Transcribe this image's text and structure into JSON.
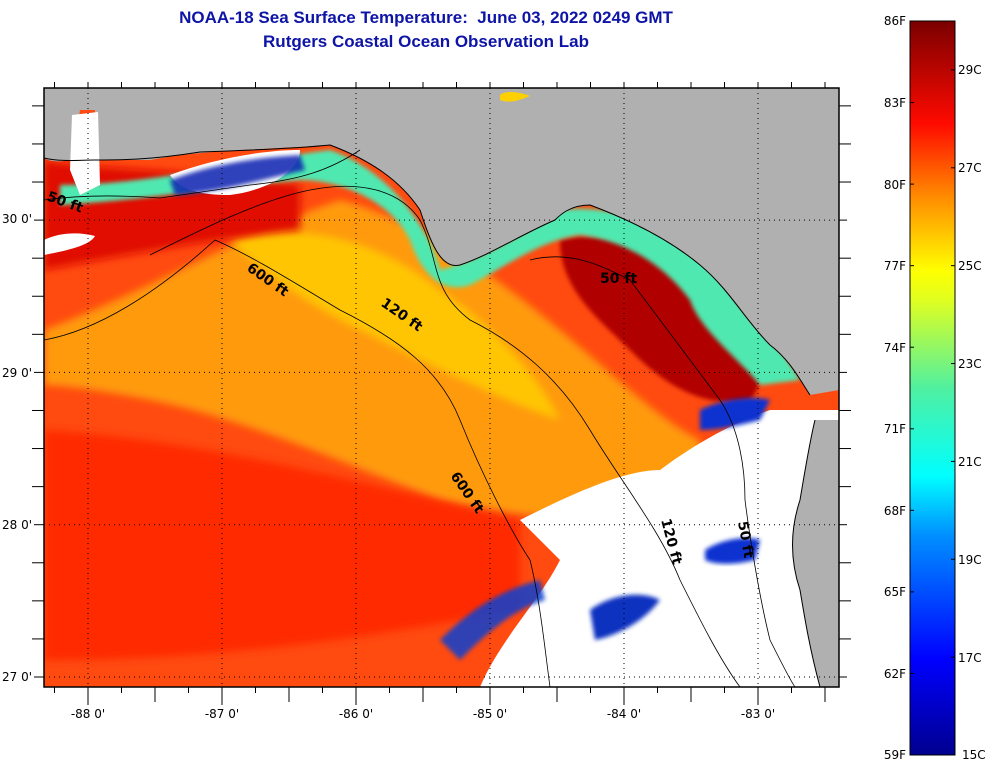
{
  "header": {
    "title": "NOAA-18 Sea Surface Temperature:  June 03, 2022 0249 GMT",
    "subtitle": "Rutgers Coastal Ocean Observation Lab"
  },
  "map": {
    "lat_labels": [
      "30 0'",
      "29 0'",
      "28 0'",
      "27 0'"
    ],
    "lon_labels": [
      "-88 0'",
      "-87 0'",
      "-86 0'",
      "-85 0'",
      "-84 0'",
      "-83 0'"
    ],
    "contour_labels": [
      "50 ft",
      "600 ft",
      "120 ft",
      "50 ft",
      "600 ft",
      "120 ft",
      "50 ft"
    ],
    "colors": {
      "land": "#b0b0b0",
      "cloud": "#ffffff",
      "contour": "#000000"
    }
  },
  "colorbar": {
    "fahrenheit_labels": [
      "86F",
      "83F",
      "80F",
      "77F",
      "74F",
      "71F",
      "68F",
      "65F",
      "62F",
      "59F"
    ],
    "celsius_labels": [
      "29C",
      "27C",
      "25C",
      "23C",
      "21C",
      "19C",
      "17C",
      "15C"
    ],
    "range_f": [
      59,
      86
    ],
    "stops": [
      "#00008f",
      "#0000ff",
      "#00b0ff",
      "#00ffff",
      "#7fff7f",
      "#ffff00",
      "#ff8000",
      "#ff0000",
      "#800000"
    ]
  },
  "title_color": "#0d14a6"
}
